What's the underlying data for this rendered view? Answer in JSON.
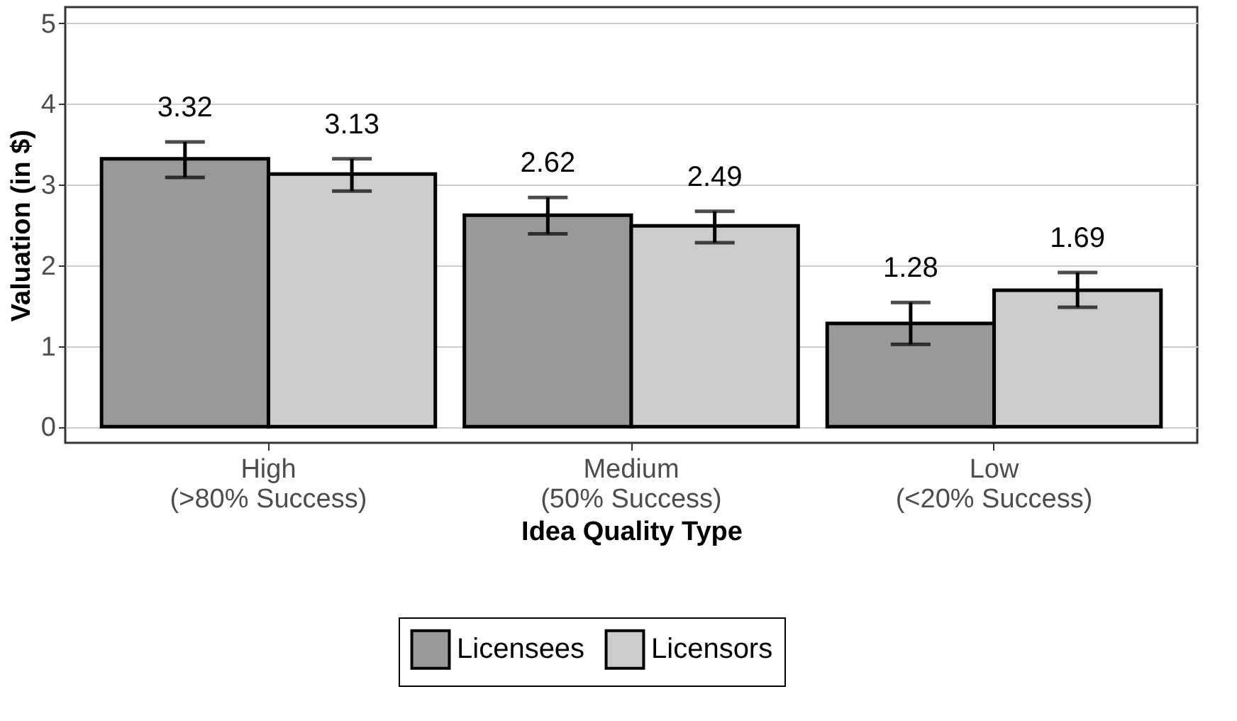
{
  "chart_data": {
    "type": "bar",
    "xlabel": "Idea Quality Type",
    "ylabel": "Valuation (in $)",
    "categories": [
      "High\n(>80% Success)",
      "Medium\n(50% Success)",
      "Low\n(<20% Success)"
    ],
    "series": [
      {
        "name": "Licensees",
        "color": "#999999",
        "values": [
          3.32,
          2.62,
          1.28
        ],
        "errors": [
          [
            3.09,
            3.53
          ],
          [
            2.39,
            2.84
          ],
          [
            1.02,
            1.54
          ]
        ]
      },
      {
        "name": "Licensors",
        "color": "#cccccc",
        "values": [
          3.13,
          2.49,
          1.69
        ],
        "errors": [
          [
            2.92,
            3.32
          ],
          [
            2.28,
            2.67
          ],
          [
            1.48,
            1.91
          ]
        ]
      }
    ],
    "ylim": [
      -0.2,
      5.2
    ],
    "yticks": [
      0,
      1,
      2,
      3,
      4,
      5
    ],
    "grid": "y",
    "legend": "bottom",
    "data_labels": true
  }
}
